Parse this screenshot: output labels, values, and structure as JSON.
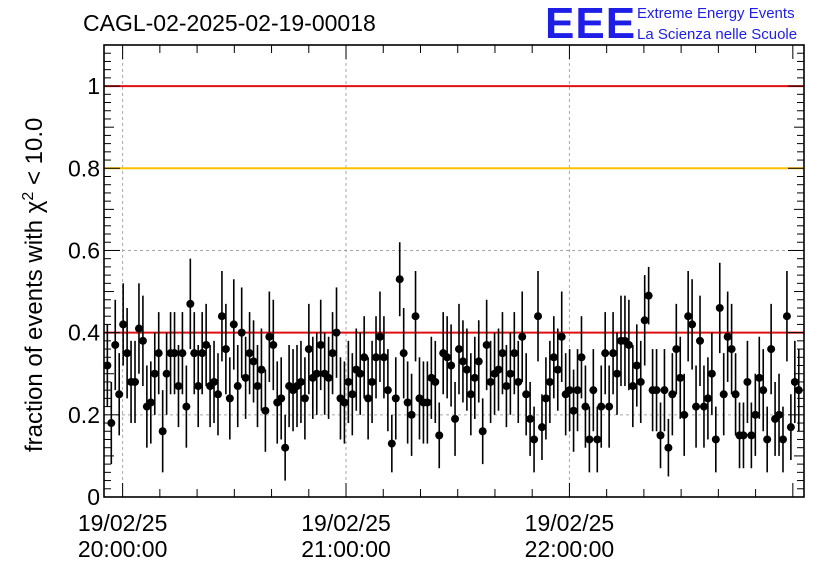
{
  "chart_data": {
    "type": "scatter",
    "title": "CAGL-02-2025-02-19-00018",
    "ylabel": "fraction of events with χ² < 10.0",
    "ylabel_parts": {
      "prefix": "fraction of events with ",
      "symbol": "χ",
      "superscript": "2",
      "suffix": " < 10.0"
    },
    "ylim": [
      0,
      1.1
    ],
    "yticks": [
      "0",
      "0.2",
      "0.4",
      "0.6",
      "0.8",
      "1"
    ],
    "ytick_values": [
      0,
      0.2,
      0.4,
      0.6,
      0.8,
      1.0
    ],
    "xrange_minutes": [
      -5,
      183
    ],
    "xticks": [
      {
        "minute": 0,
        "date": "19/02/25",
        "time": "20:00:00"
      },
      {
        "minute": 60,
        "date": "19/02/25",
        "time": "21:00:00"
      },
      {
        "minute": 120,
        "date": "19/02/25",
        "time": "22:00:00"
      }
    ],
    "grid": true,
    "reference_lines": [
      {
        "y": 1.0,
        "color": "#e01010"
      },
      {
        "y": 0.8,
        "color": "#ffc000"
      },
      {
        "y": 0.4,
        "color": "#e01010"
      }
    ],
    "marker_color": "#000000",
    "y": [
      0.32,
      0.18,
      0.37,
      0.25,
      0.42,
      0.35,
      0.28,
      0.28,
      0.41,
      0.38,
      0.22,
      0.23,
      0.3,
      0.35,
      0.16,
      0.3,
      0.35,
      0.35,
      0.27,
      0.35,
      0.22,
      0.47,
      0.35,
      0.27,
      0.35,
      0.37,
      0.27,
      0.28,
      0.25,
      0.44,
      0.36,
      0.24,
      0.42,
      0.27,
      0.4,
      0.29,
      0.35,
      0.33,
      0.27,
      0.31,
      0.21,
      0.39,
      0.37,
      0.23,
      0.24,
      0.12,
      0.27,
      0.26,
      0.27,
      0.28,
      0.24,
      0.36,
      0.29,
      0.3,
      0.37,
      0.3,
      0.29,
      0.35,
      0.4,
      0.24,
      0.23,
      0.28,
      0.25,
      0.31,
      0.3,
      0.34,
      0.24,
      0.28,
      0.34,
      0.39,
      0.34,
      0.26,
      0.13,
      0.24,
      0.53,
      0.35,
      0.23,
      0.2,
      0.44,
      0.24,
      0.23,
      0.23,
      0.29,
      0.28,
      0.15,
      0.35,
      0.34,
      0.32,
      0.19,
      0.36,
      0.33,
      0.31,
      0.25,
      0.29,
      0.33,
      0.16,
      0.37,
      0.28,
      0.3,
      0.31,
      0.35,
      0.27,
      0.3,
      0.35,
      0.28,
      0.39,
      0.25,
      0.19,
      0.14,
      0.44,
      0.17,
      0.24,
      0.28,
      0.34,
      0.31,
      0.39,
      0.25,
      0.26,
      0.21,
      0.26,
      0.34,
      0.22,
      0.14,
      0.26,
      0.14,
      0.22,
      0.35,
      0.22,
      0.35,
      0.3,
      0.38,
      0.38,
      0.37,
      0.27,
      0.32,
      0.28,
      0.43,
      0.49,
      0.26,
      0.26,
      0.15,
      0.26,
      0.12,
      0.25,
      0.36,
      0.29,
      0.2,
      0.44,
      0.42,
      0.22,
      0.38,
      0.22,
      0.24,
      0.3,
      0.14,
      0.46,
      0.25,
      0.39,
      0.36,
      0.25,
      0.15,
      0.15,
      0.28,
      0.15,
      0.2,
      0.29,
      0.26,
      0.14,
      0.36,
      0.19,
      0.2,
      0.14,
      0.44,
      0.17,
      0.28,
      0.26
    ],
    "yerr": [
      0.1,
      0.1,
      0.11,
      0.1,
      0.1,
      0.11,
      0.1,
      0.1,
      0.11,
      0.11,
      0.1,
      0.1,
      0.1,
      0.1,
      0.1,
      0.1,
      0.1,
      0.1,
      0.1,
      0.1,
      0.1,
      0.11,
      0.1,
      0.1,
      0.1,
      0.1,
      0.1,
      0.1,
      0.1,
      0.11,
      0.11,
      0.1,
      0.11,
      0.1,
      0.11,
      0.1,
      0.1,
      0.1,
      0.1,
      0.1,
      0.1,
      0.11,
      0.11,
      0.1,
      0.1,
      0.08,
      0.1,
      0.1,
      0.1,
      0.1,
      0.1,
      0.11,
      0.1,
      0.1,
      0.11,
      0.1,
      0.1,
      0.1,
      0.11,
      0.1,
      0.1,
      0.1,
      0.1,
      0.1,
      0.1,
      0.1,
      0.1,
      0.1,
      0.1,
      0.11,
      0.1,
      0.1,
      0.07,
      0.1,
      0.09,
      0.11,
      0.1,
      0.1,
      0.11,
      0.1,
      0.1,
      0.1,
      0.1,
      0.1,
      0.08,
      0.1,
      0.1,
      0.1,
      0.09,
      0.11,
      0.1,
      0.1,
      0.1,
      0.1,
      0.1,
      0.08,
      0.11,
      0.1,
      0.1,
      0.1,
      0.1,
      0.1,
      0.1,
      0.1,
      0.1,
      0.11,
      0.1,
      0.09,
      0.08,
      0.11,
      0.08,
      0.1,
      0.1,
      0.1,
      0.1,
      0.11,
      0.1,
      0.1,
      0.1,
      0.1,
      0.1,
      0.1,
      0.08,
      0.1,
      0.08,
      0.1,
      0.1,
      0.1,
      0.1,
      0.1,
      0.11,
      0.11,
      0.11,
      0.1,
      0.1,
      0.1,
      0.11,
      0.07,
      0.1,
      0.1,
      0.08,
      0.1,
      0.07,
      0.1,
      0.11,
      0.1,
      0.1,
      0.11,
      0.11,
      0.1,
      0.11,
      0.1,
      0.1,
      0.1,
      0.08,
      0.11,
      0.1,
      0.11,
      0.11,
      0.1,
      0.08,
      0.08,
      0.1,
      0.08,
      0.1,
      0.1,
      0.1,
      0.08,
      0.11,
      0.09,
      0.1,
      0.08,
      0.11,
      0.08,
      0.1,
      0.1
    ]
  },
  "logo": {
    "letters": "EEE",
    "line1": "Extreme Energy Events",
    "line2": "La Scienza nelle Scuole",
    "color": "#1e1ee6"
  }
}
